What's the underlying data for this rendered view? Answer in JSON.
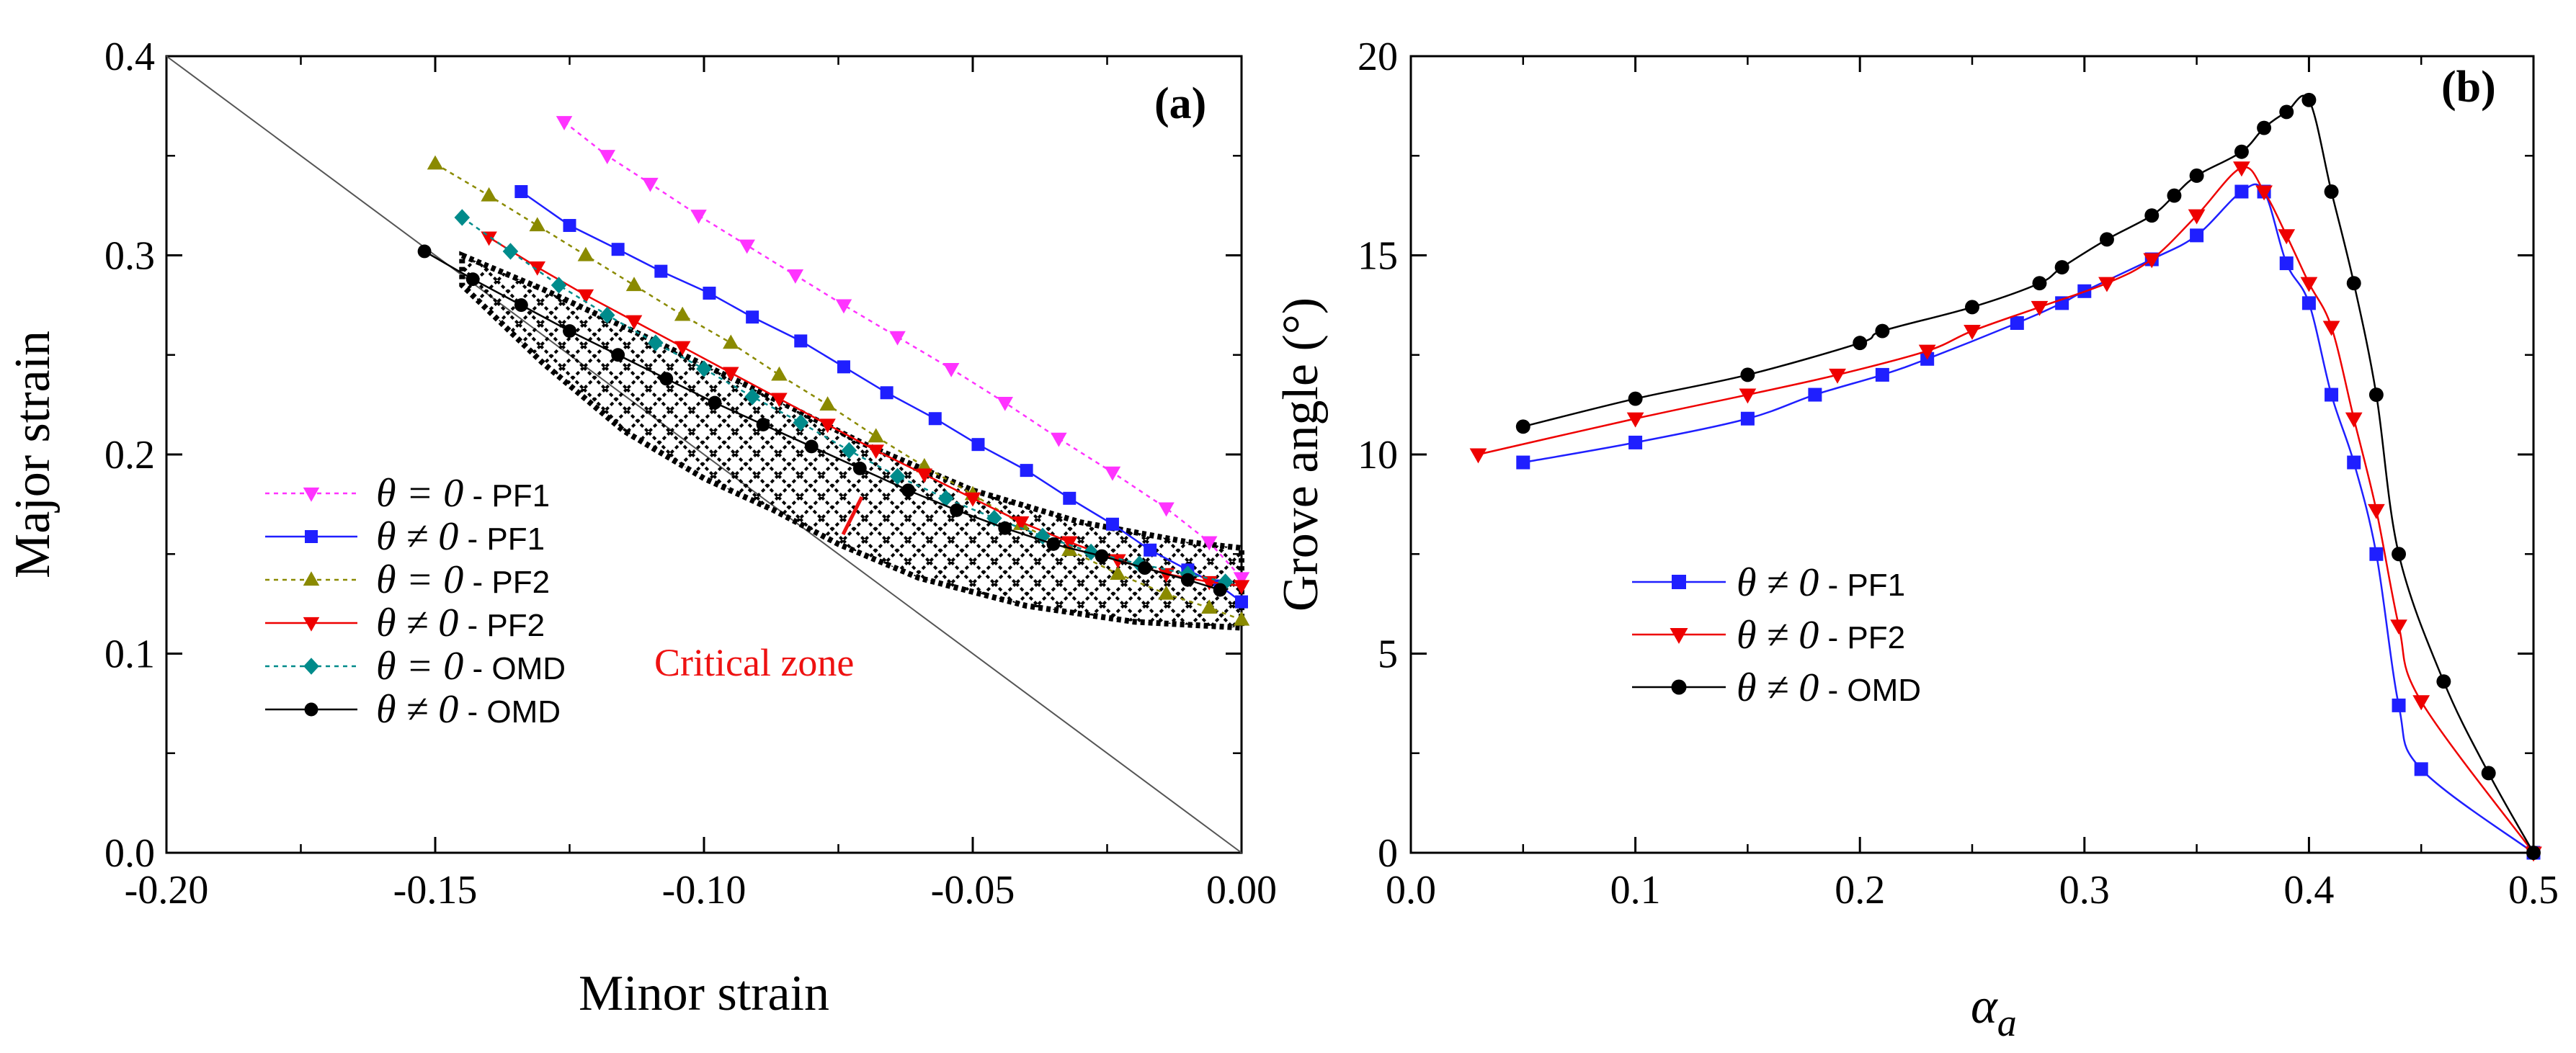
{
  "chart_data": [
    {
      "type": "line",
      "panel_label": "(a)",
      "xlabel": "Minor strain",
      "ylabel": "Major strain",
      "xlim": [
        -0.2,
        0.0
      ],
      "ylim": [
        0.0,
        0.4
      ],
      "xticks": [
        "-0.20",
        "-0.15",
        "-0.10",
        "-0.05",
        "0.00"
      ],
      "yticks": [
        "0.0",
        "0.1",
        "0.2",
        "0.3",
        "0.4"
      ],
      "reference_line": {
        "x": [
          -0.2,
          0.0
        ],
        "y": [
          0.4,
          0.0
        ]
      },
      "annotation": {
        "text": "Critical zone",
        "color": "#ee1111",
        "points_to": [
          -0.07,
          0.185
        ]
      },
      "series": [
        {
          "theta": "θ = 0",
          "suffix": " - PF1",
          "color": "#ff33ff",
          "marker": "triangle-down",
          "dash": "6,6",
          "x": [
            -0.126,
            -0.118,
            -0.11,
            -0.101,
            -0.092,
            -0.083,
            -0.074,
            -0.064,
            -0.054,
            -0.044,
            -0.034,
            -0.024,
            -0.014,
            -0.006,
            0.0
          ],
          "y": [
            0.367,
            0.35,
            0.336,
            0.32,
            0.305,
            0.29,
            0.275,
            0.259,
            0.243,
            0.226,
            0.208,
            0.191,
            0.173,
            0.156,
            0.138
          ]
        },
        {
          "theta": "θ ≠ 0",
          "suffix": " - PF1",
          "color": "#1f1fff",
          "marker": "square",
          "dash": "",
          "x": [
            -0.134,
            -0.125,
            -0.116,
            -0.108,
            -0.099,
            -0.091,
            -0.082,
            -0.074,
            -0.066,
            -0.057,
            -0.049,
            -0.04,
            -0.032,
            -0.024,
            -0.017,
            -0.01,
            -0.004,
            0.0
          ],
          "y": [
            0.332,
            0.315,
            0.303,
            0.292,
            0.281,
            0.269,
            0.257,
            0.244,
            0.231,
            0.218,
            0.205,
            0.192,
            0.178,
            0.165,
            0.152,
            0.142,
            0.134,
            0.126
          ]
        },
        {
          "theta": "θ = 0",
          "suffix": " - PF2",
          "color": "#8a8a00",
          "marker": "triangle-up",
          "dash": "6,6",
          "x": [
            -0.15,
            -0.14,
            -0.131,
            -0.122,
            -0.113,
            -0.104,
            -0.095,
            -0.086,
            -0.077,
            -0.068,
            -0.059,
            -0.05,
            -0.041,
            -0.032,
            -0.023,
            -0.014,
            -0.006,
            0.0
          ],
          "y": [
            0.346,
            0.33,
            0.315,
            0.3,
            0.285,
            0.27,
            0.256,
            0.24,
            0.225,
            0.209,
            0.194,
            0.18,
            0.165,
            0.152,
            0.14,
            0.13,
            0.123,
            0.117
          ]
        },
        {
          "theta": "θ ≠ 0",
          "suffix": " - PF2",
          "color": "#ee0000",
          "marker": "triangle-down",
          "dash": "",
          "x": [
            -0.14,
            -0.131,
            -0.122,
            -0.113,
            -0.104,
            -0.095,
            -0.086,
            -0.077,
            -0.068,
            -0.059,
            -0.05,
            -0.041,
            -0.032,
            -0.023,
            -0.014,
            -0.006,
            0.0
          ],
          "y": [
            0.309,
            0.294,
            0.28,
            0.267,
            0.254,
            0.241,
            0.228,
            0.215,
            0.202,
            0.19,
            0.178,
            0.166,
            0.156,
            0.147,
            0.14,
            0.136,
            0.134
          ]
        },
        {
          "theta": "θ = 0",
          "suffix": " - OMD",
          "color": "#008b8b",
          "marker": "diamond",
          "dash": "6,6",
          "x": [
            -0.145,
            -0.136,
            -0.127,
            -0.118,
            -0.109,
            -0.1,
            -0.091,
            -0.082,
            -0.073,
            -0.064,
            -0.055,
            -0.046,
            -0.037,
            -0.028,
            -0.019,
            -0.01,
            -0.003
          ],
          "y": [
            0.319,
            0.302,
            0.285,
            0.27,
            0.256,
            0.243,
            0.229,
            0.216,
            0.202,
            0.189,
            0.178,
            0.168,
            0.159,
            0.151,
            0.145,
            0.14,
            0.136
          ]
        },
        {
          "theta": "θ ≠ 0",
          "suffix": " - OMD",
          "color": "#000000",
          "marker": "circle",
          "dash": "",
          "x": [
            -0.152,
            -0.143,
            -0.134,
            -0.125,
            -0.116,
            -0.107,
            -0.098,
            -0.089,
            -0.08,
            -0.071,
            -0.062,
            -0.053,
            -0.044,
            -0.035,
            -0.026,
            -0.018,
            -0.01,
            -0.004
          ],
          "y": [
            0.302,
            0.288,
            0.275,
            0.262,
            0.25,
            0.238,
            0.226,
            0.215,
            0.204,
            0.193,
            0.182,
            0.172,
            0.163,
            0.155,
            0.149,
            0.143,
            0.137,
            0.132
          ]
        }
      ]
    },
    {
      "type": "line",
      "panel_label": "(b)",
      "xlabel": "α",
      "xlabel_sub": "a",
      "ylabel": "Grove angle (°)",
      "xlim": [
        0.0,
        0.5
      ],
      "ylim": [
        0,
        20
      ],
      "xticks": [
        "0.0",
        "0.1",
        "0.2",
        "0.3",
        "0.4",
        "0.5"
      ],
      "yticks": [
        "0",
        "5",
        "10",
        "15",
        "20"
      ],
      "series": [
        {
          "theta": "θ ≠ 0",
          "suffix": " - PF1",
          "color": "#1f1fff",
          "marker": "square",
          "x": [
            0.05,
            0.1,
            0.15,
            0.18,
            0.21,
            0.23,
            0.27,
            0.29,
            0.3,
            0.33,
            0.35,
            0.37,
            0.38,
            0.39,
            0.4,
            0.41,
            0.42,
            0.43,
            0.44,
            0.45,
            0.5
          ],
          "y": [
            9.8,
            10.3,
            10.9,
            11.5,
            12.0,
            12.4,
            13.3,
            13.8,
            14.1,
            14.9,
            15.5,
            16.6,
            16.6,
            14.8,
            13.8,
            11.5,
            9.8,
            7.5,
            3.7,
            2.1,
            0.0
          ]
        },
        {
          "theta": "θ ≠ 0",
          "suffix": " - PF2",
          "color": "#ee0000",
          "marker": "triangle-down",
          "x": [
            0.03,
            0.1,
            0.15,
            0.19,
            0.23,
            0.25,
            0.28,
            0.31,
            0.33,
            0.35,
            0.37,
            0.38,
            0.39,
            0.4,
            0.41,
            0.42,
            0.43,
            0.44,
            0.45,
            0.5
          ],
          "y": [
            10.0,
            10.9,
            11.5,
            12.0,
            12.6,
            13.1,
            13.7,
            14.3,
            14.9,
            16.0,
            17.2,
            16.6,
            15.5,
            14.3,
            13.2,
            10.9,
            8.6,
            5.7,
            3.8,
            0.0
          ]
        },
        {
          "theta": "θ ≠ 0",
          "suffix": " - OMD",
          "color": "#000000",
          "marker": "circle",
          "x": [
            0.05,
            0.1,
            0.15,
            0.2,
            0.21,
            0.25,
            0.28,
            0.29,
            0.31,
            0.33,
            0.34,
            0.35,
            0.37,
            0.38,
            0.39,
            0.4,
            0.41,
            0.42,
            0.43,
            0.44,
            0.46,
            0.48,
            0.5
          ],
          "y": [
            10.7,
            11.4,
            12.0,
            12.8,
            13.1,
            13.7,
            14.3,
            14.7,
            15.4,
            16.0,
            16.5,
            17.0,
            17.6,
            18.2,
            18.6,
            18.9,
            16.6,
            14.3,
            11.5,
            7.5,
            4.3,
            2.0,
            0.0
          ]
        }
      ]
    }
  ]
}
